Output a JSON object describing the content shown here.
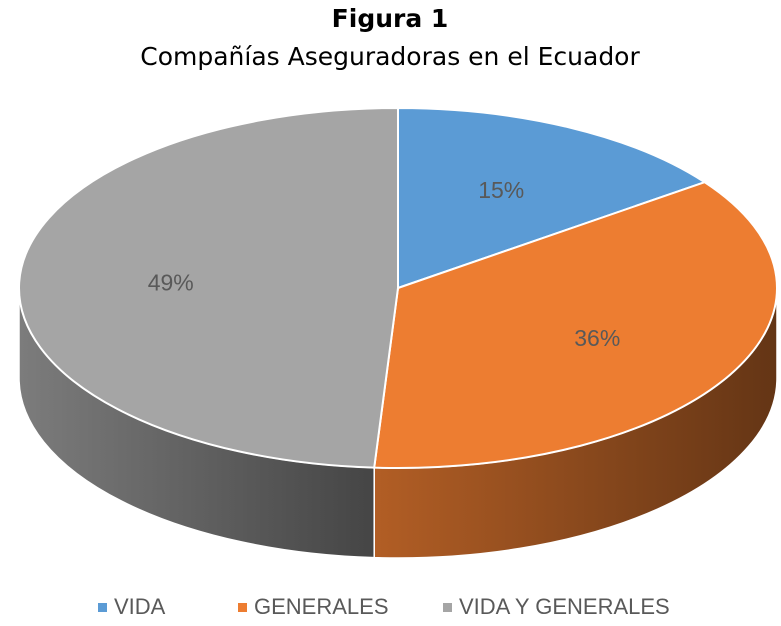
{
  "chart_data": {
    "type": "pie3d",
    "title": "Figura 1",
    "subtitle": "Compañías Aseguradoras en el Ecuador",
    "categories": [
      "VIDA",
      "GENERALES",
      "VIDA Y GENERALES"
    ],
    "values": [
      15,
      36,
      49
    ],
    "value_labels": [
      "15%",
      "36%",
      "49%"
    ],
    "colors": [
      "#5b9bd5",
      "#ed7d31",
      "#a5a5a5"
    ],
    "legend": "bottom"
  }
}
